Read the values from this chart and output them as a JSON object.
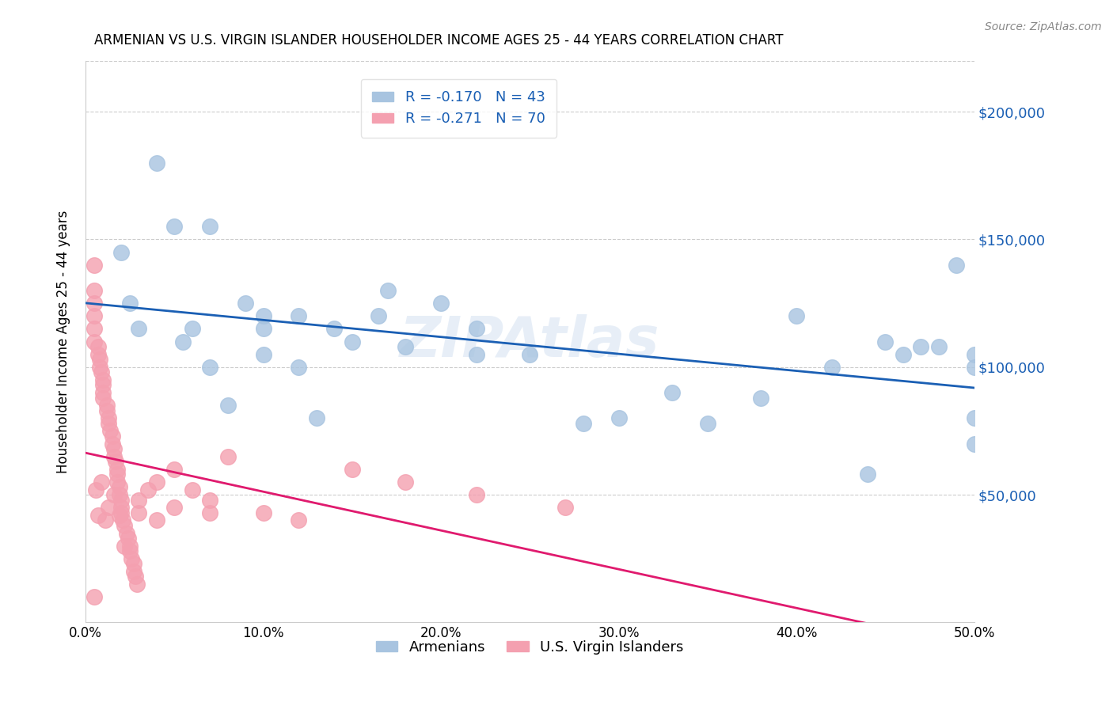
{
  "title": "ARMENIAN VS U.S. VIRGIN ISLANDER HOUSEHOLDER INCOME AGES 25 - 44 YEARS CORRELATION CHART",
  "source": "Source: ZipAtlas.com",
  "ylabel": "Householder Income Ages 25 - 44 years",
  "xlabel_ticks": [
    "0.0%",
    "10.0%",
    "20.0%",
    "30.0%",
    "40.0%",
    "50.0%"
  ],
  "xlabel_vals": [
    0.0,
    0.1,
    0.2,
    0.3,
    0.4,
    0.5
  ],
  "ytick_labels": [
    "$50,000",
    "$100,000",
    "$150,000",
    "$200,000"
  ],
  "ytick_vals": [
    50000,
    100000,
    150000,
    200000
  ],
  "ylim": [
    0,
    220000
  ],
  "xlim": [
    0.0,
    0.5
  ],
  "legend1_label": "R = -0.170   N = 43",
  "legend2_label": "R = -0.271   N = 70",
  "legend_label1": "Armenians",
  "legend_label2": "U.S. Virgin Islanders",
  "blue_color": "#a8c4e0",
  "pink_color": "#f4a0b0",
  "blue_line_color": "#1a5fb4",
  "pink_line_color": "#e01a6e",
  "grey_line_color": "#c0c0c0",
  "watermark": "ZIPAtlas",
  "armenian_x": [
    0.02,
    0.04,
    0.025,
    0.03,
    0.05,
    0.07,
    0.07,
    0.055,
    0.06,
    0.08,
    0.09,
    0.1,
    0.1,
    0.1,
    0.12,
    0.12,
    0.13,
    0.14,
    0.15,
    0.165,
    0.17,
    0.18,
    0.2,
    0.22,
    0.22,
    0.25,
    0.28,
    0.3,
    0.33,
    0.35,
    0.38,
    0.4,
    0.42,
    0.44,
    0.45,
    0.46,
    0.47,
    0.48,
    0.49,
    0.5,
    0.5,
    0.5,
    0.5
  ],
  "armenian_y": [
    145000,
    180000,
    125000,
    115000,
    155000,
    155000,
    100000,
    110000,
    115000,
    85000,
    125000,
    115000,
    120000,
    105000,
    120000,
    100000,
    80000,
    115000,
    110000,
    120000,
    130000,
    108000,
    125000,
    105000,
    115000,
    105000,
    78000,
    80000,
    90000,
    78000,
    88000,
    120000,
    100000,
    58000,
    110000,
    105000,
    108000,
    108000,
    140000,
    80000,
    70000,
    105000,
    100000
  ],
  "virgin_x": [
    0.005,
    0.005,
    0.005,
    0.005,
    0.005,
    0.007,
    0.007,
    0.008,
    0.008,
    0.009,
    0.01,
    0.01,
    0.01,
    0.01,
    0.012,
    0.012,
    0.013,
    0.013,
    0.014,
    0.015,
    0.015,
    0.016,
    0.016,
    0.017,
    0.018,
    0.018,
    0.018,
    0.019,
    0.019,
    0.02,
    0.02,
    0.02,
    0.021,
    0.022,
    0.023,
    0.024,
    0.025,
    0.025,
    0.026,
    0.027,
    0.027,
    0.028,
    0.029,
    0.03,
    0.03,
    0.035,
    0.04,
    0.04,
    0.05,
    0.05,
    0.06,
    0.07,
    0.07,
    0.08,
    0.1,
    0.12,
    0.15,
    0.18,
    0.22,
    0.27,
    0.005,
    0.006,
    0.007,
    0.009,
    0.011,
    0.013,
    0.016,
    0.019,
    0.022,
    0.005
  ],
  "virgin_y": [
    130000,
    125000,
    120000,
    115000,
    110000,
    108000,
    105000,
    103000,
    100000,
    98000,
    95000,
    93000,
    90000,
    88000,
    85000,
    83000,
    80000,
    78000,
    75000,
    73000,
    70000,
    68000,
    65000,
    63000,
    60000,
    58000,
    55000,
    53000,
    50000,
    48000,
    45000,
    43000,
    40000,
    38000,
    35000,
    33000,
    30000,
    28000,
    25000,
    23000,
    20000,
    18000,
    15000,
    43000,
    48000,
    52000,
    55000,
    40000,
    60000,
    45000,
    52000,
    48000,
    43000,
    65000,
    43000,
    40000,
    60000,
    55000,
    50000,
    45000,
    140000,
    52000,
    42000,
    55000,
    40000,
    45000,
    50000,
    42000,
    30000,
    10000
  ]
}
